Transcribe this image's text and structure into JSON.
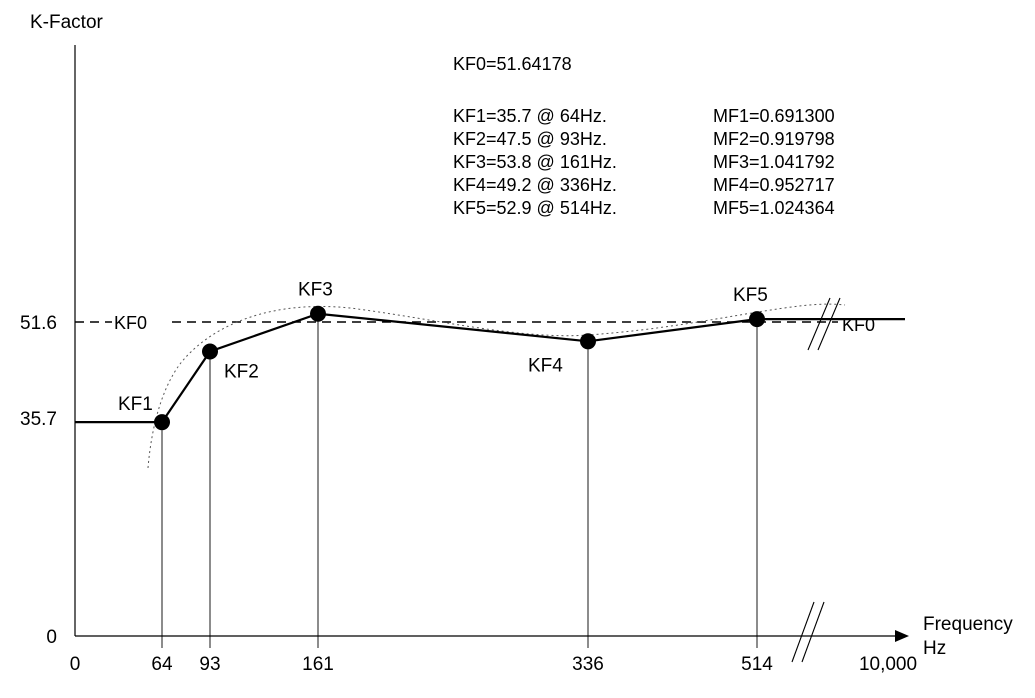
{
  "chart_data": {
    "type": "line",
    "ylabel": "K-Factor",
    "xlabel": "Frequency",
    "xunit": "Hz",
    "x_ticks": [
      "0",
      "64",
      "93",
      "161",
      "336",
      "514",
      "10,000"
    ],
    "y_ticks": [
      "0",
      "35.7",
      "51.6"
    ],
    "reference_line": {
      "label": "KF0",
      "value": 51.6
    },
    "points": [
      {
        "label": "KF1",
        "x": 64,
        "y": 35.7
      },
      {
        "label": "KF2",
        "x": 93,
        "y": 47.5
      },
      {
        "label": "KF3",
        "x": 161,
        "y": 53.8
      },
      {
        "label": "KF4",
        "x": 336,
        "y": 49.2
      },
      {
        "label": "KF5",
        "x": 514,
        "y": 52.9
      }
    ],
    "series": [
      {
        "x": [
          0,
          64,
          93,
          161,
          336,
          514,
          10000
        ],
        "values": [
          35.7,
          35.7,
          47.5,
          53.8,
          49.2,
          52.9,
          52.9
        ]
      }
    ],
    "annotations": {
      "kf0": "KF0=51.64178",
      "kf_lines": [
        "KF1=35.7 @ 64Hz.",
        "KF2=47.5 @ 93Hz.",
        "KF3=53.8 @ 161Hz.",
        "KF4=49.2 @ 336Hz.",
        "KF5=52.9 @ 514Hz."
      ],
      "mf_lines": [
        "MF1=0.691300",
        "MF2=0.919798",
        "MF3=1.041792",
        "MF4=0.952717",
        "MF5=1.024364"
      ]
    },
    "axis_break": true
  }
}
